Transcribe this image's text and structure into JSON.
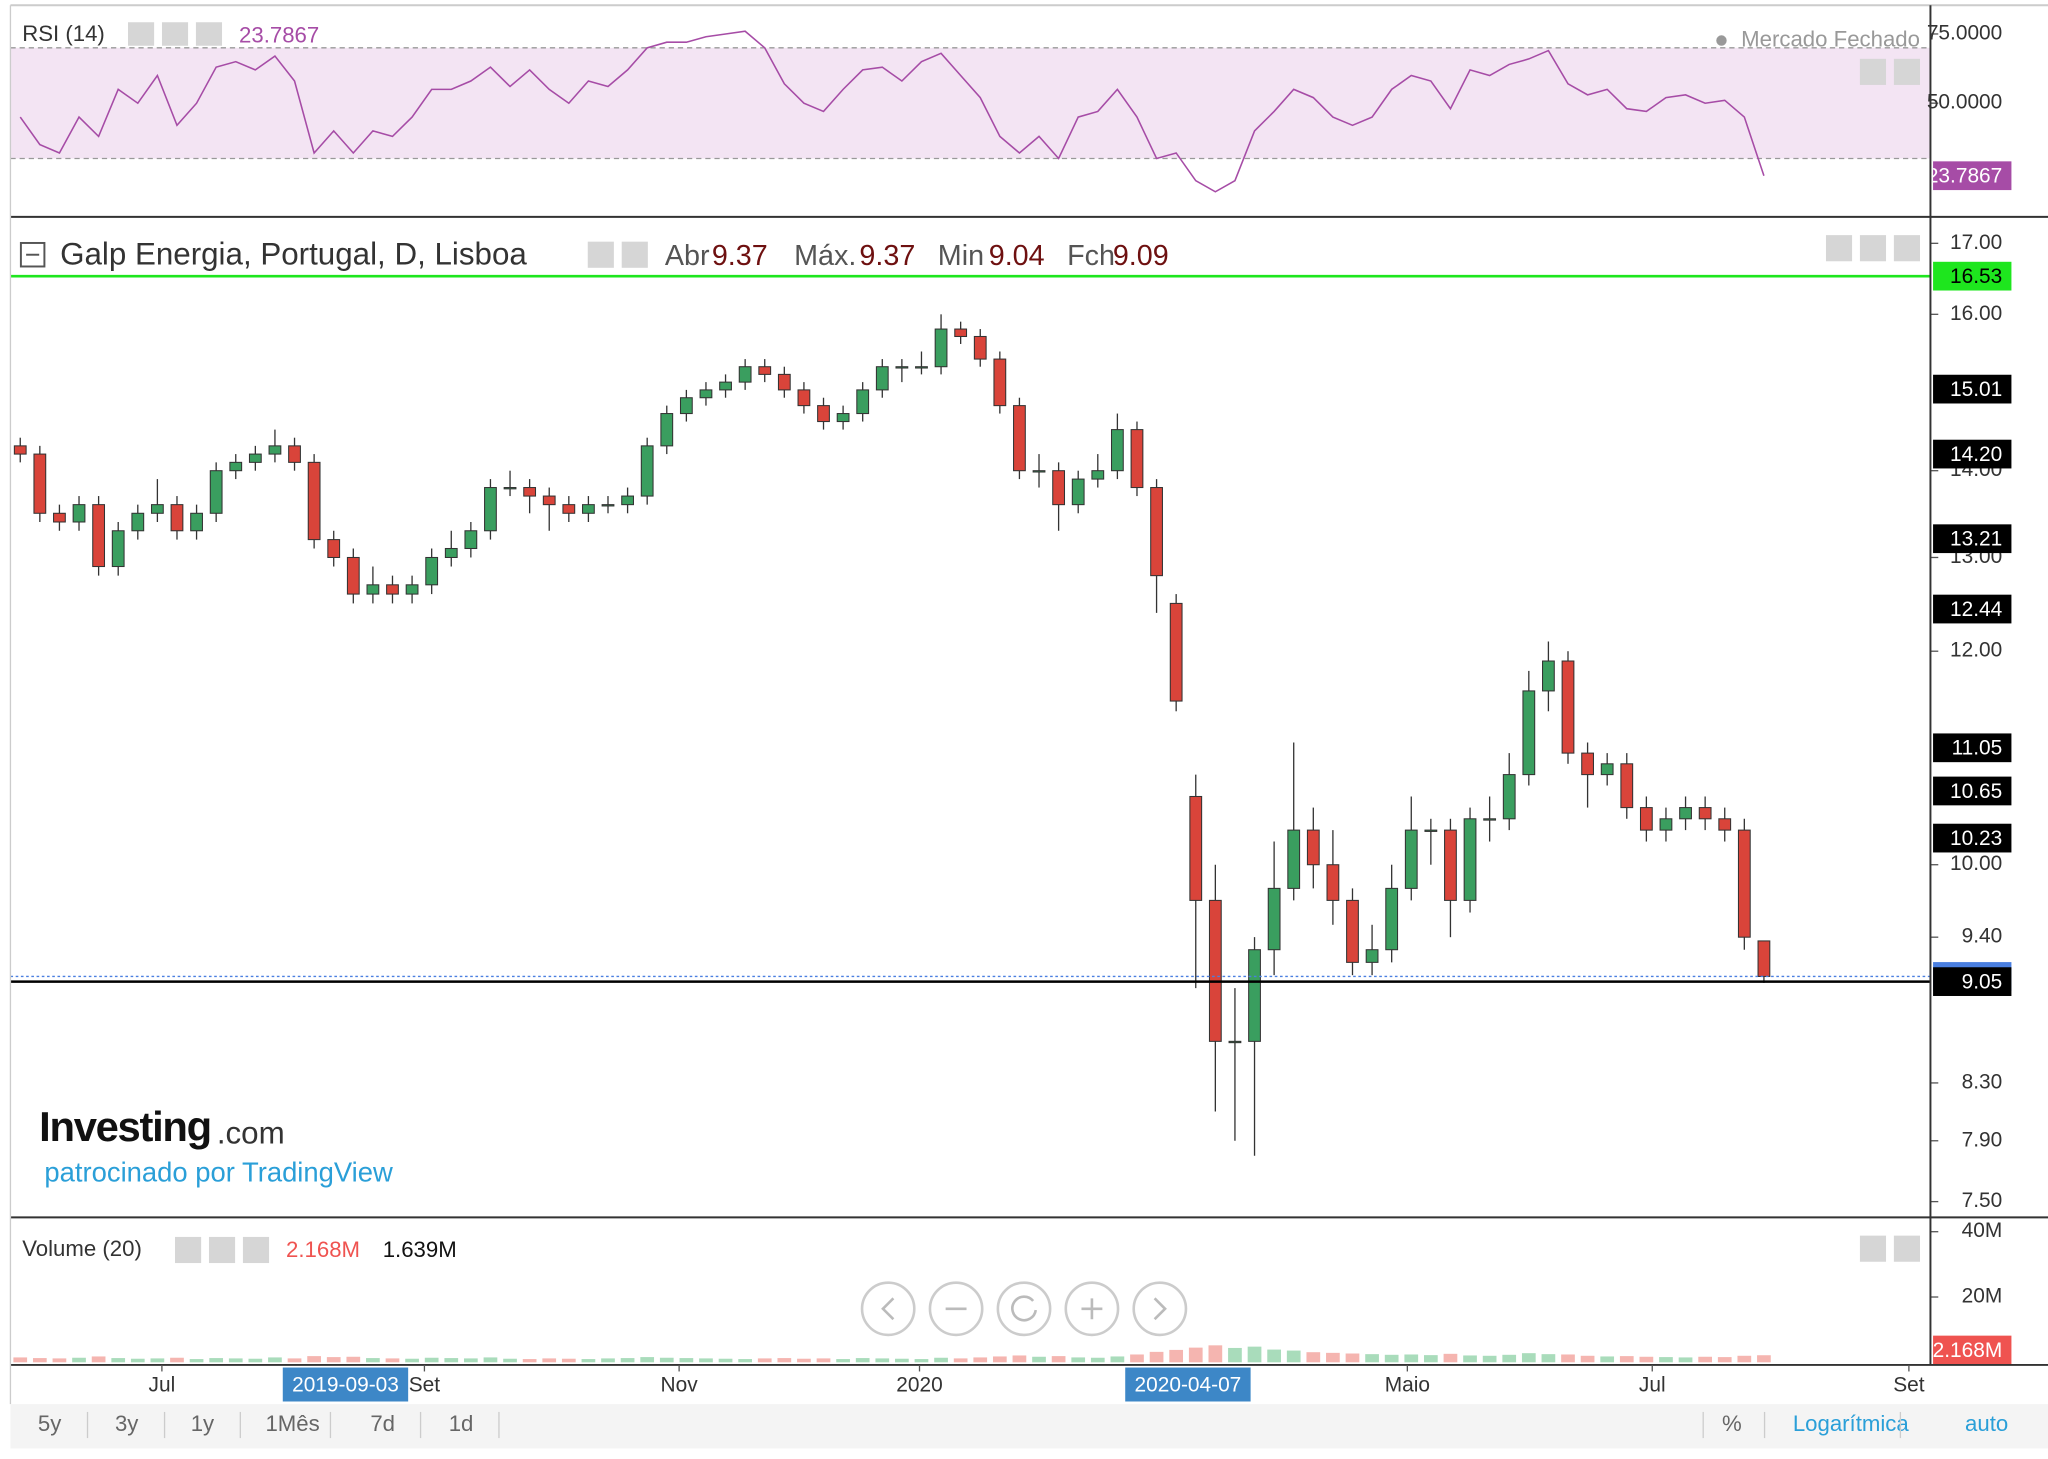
{
  "chart_data": [
    {
      "type": "line",
      "title": "RSI (14)",
      "status": "Mercado Fechado",
      "color": "#a64ca6",
      "band": [
        30,
        70
      ],
      "band_color": "#f3e4f3",
      "ylim": [
        9.4,
        84.9
      ],
      "yticks": [
        {
          "value": 50,
          "label": "50.0000"
        },
        {
          "value": 75,
          "label": "75.0000"
        }
      ],
      "values": [
        45,
        35,
        32,
        45,
        38,
        55,
        50,
        60,
        42,
        50,
        63,
        65,
        62,
        67,
        58,
        32,
        40,
        32,
        40,
        38,
        45,
        55,
        55,
        58,
        63,
        56,
        62,
        55,
        50,
        58,
        56,
        62,
        70,
        72,
        72,
        74,
        75,
        76,
        70,
        57,
        50,
        47,
        55,
        62,
        63,
        58,
        65,
        68,
        60,
        52,
        38,
        32,
        38,
        30,
        45,
        47,
        55,
        45,
        30,
        32,
        22,
        18,
        22,
        40,
        47,
        55,
        52,
        45,
        42,
        45,
        55,
        60,
        58,
        48,
        62,
        60,
        64,
        66,
        69,
        57,
        53,
        55,
        48,
        47,
        52,
        53,
        50,
        51,
        45,
        23.7867
      ]
    },
    {
      "type": "candlestick",
      "title": "Galp Energia, Portugal, D, Lisboa",
      "log_scale": true,
      "legend": [
        {
          "label": "Abr",
          "value": 9.37
        },
        {
          "label": "Máx.",
          "value": 9.37
        },
        {
          "label": "Min",
          "value": 9.04
        },
        {
          "label": "Fch",
          "value": 9.09
        }
      ],
      "up_color": "#3a9e5f",
      "down_color": "#d9443a",
      "ylim": [
        7.4,
        17.35
      ],
      "yticks": [
        {
          "value": 7.5,
          "label": "7.50"
        },
        {
          "value": 7.9,
          "label": "7.90"
        },
        {
          "value": 8.3,
          "label": "8.30"
        },
        {
          "value": 9.4,
          "label": "9.40"
        },
        {
          "value": 10,
          "label": "10.00"
        },
        {
          "value": 12,
          "label": "12.00"
        },
        {
          "value": 13,
          "label": "13.00"
        },
        {
          "value": 14,
          "label": "14.00"
        },
        {
          "value": 16,
          "label": "16.00"
        },
        {
          "value": 17,
          "label": "17.00"
        }
      ],
      "xlim": [
        -0.5,
        97.5
      ],
      "xticks": [
        {
          "value": 7.23,
          "label": "Jul"
        },
        {
          "value": 20.63,
          "label": "Set"
        },
        {
          "value": 33.63,
          "label": "Nov"
        },
        {
          "value": 45.9,
          "label": "2020"
        },
        {
          "value": 70.8,
          "label": "Maio"
        },
        {
          "value": 83.3,
          "label": "Jul"
        },
        {
          "value": 96.4,
          "label": "Set"
        }
      ],
      "date_markers": [
        {
          "value": 16.6,
          "label": "2019-09-03"
        },
        {
          "value": 59.6,
          "label": "2020-04-07"
        }
      ],
      "price_levels": [
        {
          "value": 16.53,
          "bg": "#1ee61e",
          "text_color": "#000",
          "line": "solid"
        },
        {
          "value": 15.01,
          "bg": "#000",
          "text_color": "#fff"
        },
        {
          "value": 14.2,
          "label": "14.20",
          "bg": "#000",
          "text_color": "#fff"
        },
        {
          "value": 13.21,
          "bg": "#000",
          "text_color": "#fff"
        },
        {
          "value": 12.44,
          "bg": "#000",
          "text_color": "#fff"
        },
        {
          "value": 11.05,
          "bg": "#000",
          "text_color": "#fff"
        },
        {
          "value": 10.65,
          "bg": "#000",
          "text_color": "#fff"
        },
        {
          "value": 10.23,
          "bg": "#000",
          "text_color": "#fff"
        },
        {
          "value": 9.09,
          "bg": "#4a7fe0",
          "text_color": "#fff",
          "line": "dotted"
        },
        {
          "value": 9.05,
          "bg": "#000",
          "text_color": "#fff",
          "line": "solid"
        }
      ],
      "open": [
        14.3,
        14.2,
        13.5,
        13.4,
        13.6,
        12.9,
        13.3,
        13.5,
        13.6,
        13.3,
        13.5,
        14.0,
        14.1,
        14.2,
        14.3,
        14.1,
        13.2,
        13.0,
        12.6,
        12.7,
        12.6,
        12.7,
        13.0,
        13.1,
        13.3,
        13.8,
        13.8,
        13.7,
        13.6,
        13.5,
        13.6,
        13.6,
        13.7,
        14.3,
        14.7,
        14.9,
        15.0,
        15.1,
        15.3,
        15.2,
        15.0,
        14.8,
        14.6,
        14.7,
        15.0,
        15.3,
        15.3,
        15.3,
        15.8,
        15.7,
        15.4,
        14.8,
        14.0,
        14.0,
        13.6,
        13.9,
        14.0,
        14.5,
        13.8,
        12.5,
        10.6,
        9.7,
        8.6,
        8.6,
        9.3,
        9.8,
        10.3,
        10.0,
        9.7,
        9.2,
        9.3,
        9.8,
        10.3,
        10.3,
        9.7,
        10.4,
        10.4,
        10.8,
        11.6,
        11.9,
        11.0,
        10.8,
        10.9,
        10.5,
        10.3,
        10.4,
        10.5,
        10.4,
        10.3,
        9.37
      ],
      "high": [
        14.4,
        14.3,
        13.6,
        13.7,
        13.7,
        13.4,
        13.6,
        13.9,
        13.7,
        13.6,
        14.1,
        14.2,
        14.3,
        14.5,
        14.4,
        14.2,
        13.3,
        13.1,
        12.9,
        12.8,
        12.8,
        13.1,
        13.3,
        13.4,
        13.9,
        14.0,
        13.9,
        13.8,
        13.7,
        13.7,
        13.7,
        13.8,
        14.4,
        14.8,
        15.0,
        15.1,
        15.2,
        15.4,
        15.4,
        15.3,
        15.1,
        14.9,
        14.8,
        15.1,
        15.4,
        15.4,
        15.5,
        16.0,
        15.9,
        15.8,
        15.5,
        14.9,
        14.2,
        14.1,
        14.0,
        14.2,
        14.7,
        14.6,
        13.9,
        12.6,
        10.8,
        10.0,
        9.0,
        9.4,
        10.2,
        11.1,
        10.5,
        10.3,
        9.8,
        9.5,
        10.0,
        10.6,
        10.4,
        10.4,
        10.5,
        10.6,
        11.0,
        11.8,
        12.1,
        12.0,
        11.1,
        11.0,
        11.0,
        10.6,
        10.5,
        10.6,
        10.6,
        10.5,
        10.4,
        9.37
      ],
      "low": [
        14.1,
        13.4,
        13.3,
        13.3,
        12.8,
        12.8,
        13.2,
        13.4,
        13.2,
        13.2,
        13.4,
        13.9,
        14.0,
        14.1,
        14.0,
        13.1,
        12.9,
        12.5,
        12.5,
        12.5,
        12.5,
        12.6,
        12.9,
        13.0,
        13.2,
        13.7,
        13.5,
        13.3,
        13.4,
        13.4,
        13.5,
        13.5,
        13.6,
        14.2,
        14.6,
        14.8,
        14.9,
        15.0,
        15.1,
        14.9,
        14.7,
        14.5,
        14.5,
        14.6,
        14.9,
        15.1,
        15.2,
        15.2,
        15.6,
        15.3,
        14.7,
        13.9,
        13.8,
        13.3,
        13.5,
        13.8,
        13.9,
        13.7,
        12.4,
        11.4,
        9.0,
        8.1,
        7.9,
        7.8,
        9.1,
        9.7,
        9.8,
        9.5,
        9.1,
        9.1,
        9.2,
        9.7,
        10.0,
        9.4,
        9.6,
        10.2,
        10.3,
        10.7,
        11.4,
        10.9,
        10.5,
        10.7,
        10.4,
        10.2,
        10.2,
        10.3,
        10.3,
        10.2,
        9.3,
        9.04
      ],
      "close": [
        14.2,
        13.5,
        13.4,
        13.6,
        12.9,
        13.3,
        13.5,
        13.6,
        13.3,
        13.5,
        14.0,
        14.1,
        14.2,
        14.3,
        14.1,
        13.2,
        13.0,
        12.6,
        12.7,
        12.6,
        12.7,
        13.0,
        13.1,
        13.3,
        13.8,
        13.8,
        13.7,
        13.6,
        13.5,
        13.6,
        13.6,
        13.7,
        14.3,
        14.7,
        14.9,
        15.0,
        15.1,
        15.3,
        15.2,
        15.0,
        14.8,
        14.6,
        14.7,
        15.0,
        15.3,
        15.3,
        15.3,
        15.8,
        15.7,
        15.4,
        14.8,
        14.0,
        14.0,
        13.6,
        13.9,
        14.0,
        14.5,
        13.8,
        12.8,
        11.5,
        9.7,
        8.6,
        8.6,
        9.3,
        9.8,
        10.3,
        10.0,
        9.7,
        9.2,
        9.3,
        9.8,
        10.3,
        10.3,
        9.7,
        10.4,
        10.4,
        10.8,
        11.6,
        11.9,
        11.0,
        10.8,
        10.9,
        10.5,
        10.3,
        10.4,
        10.5,
        10.4,
        10.3,
        9.4,
        9.09
      ]
    },
    {
      "type": "bar",
      "title": "Volume (20)",
      "up_color": "#a9dcbb",
      "down_color": "#f5b5b0",
      "legend_values": [
        {
          "value": 2168000,
          "label": "2.168M",
          "color": "#ef5350"
        },
        {
          "value": 1639000,
          "label": "1.639M",
          "color": "#111"
        }
      ],
      "ylim": [
        -800000,
        43200000
      ],
      "yticks": [
        {
          "value": 20000000,
          "label": "20M"
        },
        {
          "value": 40000000,
          "label": "40M"
        }
      ],
      "values": [
        1500000,
        1300000,
        1200000,
        1400000,
        1800000,
        1300000,
        1100000,
        1200000,
        1400000,
        1000000,
        1300000,
        1200000,
        1100000,
        1500000,
        1200000,
        1900000,
        1600000,
        1700000,
        1300000,
        1200000,
        1100000,
        1400000,
        1300000,
        1200000,
        1500000,
        1100000,
        1000000,
        1200000,
        1100000,
        1000000,
        1200000,
        1300000,
        1600000,
        1400000,
        1300000,
        1200000,
        1100000,
        1000000,
        1200000,
        1300000,
        1100000,
        1200000,
        1000000,
        1300000,
        1200000,
        1100000,
        1000000,
        1400000,
        1200000,
        1500000,
        1800000,
        2100000,
        1700000,
        1900000,
        1500000,
        1400000,
        1800000,
        2400000,
        3200000,
        3800000,
        4500000,
        5200000,
        4400000,
        4800000,
        3900000,
        3600000,
        3100000,
        2900000,
        2700000,
        2500000,
        2300000,
        2400000,
        2200000,
        2600000,
        2100000,
        2000000,
        2300000,
        2800000,
        2500000,
        2400000,
        2000000,
        1800000,
        1900000,
        1700000,
        1600000,
        1500000,
        1700000,
        1600000,
        2000000,
        2168000
      ]
    }
  ],
  "branding": {
    "logo": "Investing",
    "logo_suffix": ".com",
    "sponsor": "patrocinado por TradingView"
  },
  "toolbar": {
    "periods": [
      "5y",
      "3y",
      "1y",
      "1Mês",
      "7d",
      "1d"
    ],
    "options": [
      "%",
      "Logarítmica",
      "auto"
    ]
  }
}
